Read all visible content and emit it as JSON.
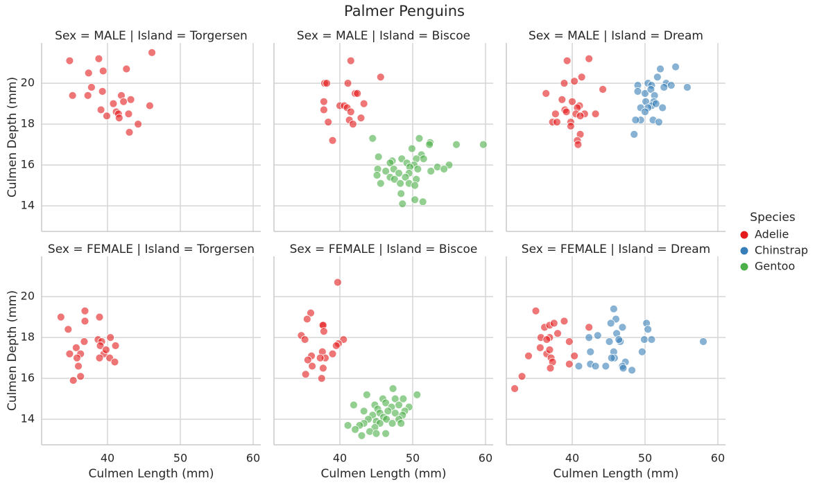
{
  "title": "Palmer Penguins",
  "xlabel": "Culmen Length (mm)",
  "ylabel": "Culmen Depth (mm)",
  "xlim": [
    30.95,
    61.05
  ],
  "ylim": [
    12.75,
    21.97
  ],
  "xticks": [
    40,
    50,
    60
  ],
  "yticks": [
    14,
    16,
    18,
    20
  ],
  "grid": true,
  "legend": {
    "title": "Species",
    "position": "right",
    "entries": [
      {
        "name": "Adelie",
        "color": "#e41a1c"
      },
      {
        "name": "Chinstrap",
        "color": "#377eb8"
      },
      {
        "name": "Gentoo",
        "color": "#4daf4a"
      }
    ]
  },
  "chart_data": [
    {
      "type": "scatter",
      "title": "Sex = MALE | Island = Torgersen",
      "series": [
        {
          "name": "Adelie",
          "color": "#e41a1c",
          "x": [
            34.8,
            38.8,
            46.1,
            42.6,
            37.4,
            39.4,
            37.8,
            35.2,
            37.3,
            39.3,
            40.8,
            41.9,
            43.2,
            42.2,
            39.1,
            39.9,
            41.2,
            41.5,
            41.6,
            42.9,
            45.8,
            44.2,
            43.0
          ],
          "values": [
            21.1,
            21.2,
            21.5,
            20.7,
            20.5,
            20.6,
            19.8,
            19.4,
            19.4,
            19.6,
            19.0,
            19.4,
            19.2,
            19.1,
            18.7,
            18.4,
            18.6,
            18.5,
            18.3,
            18.5,
            18.9,
            18.0,
            17.6
          ]
        }
      ]
    },
    {
      "type": "scatter",
      "title": "Sex = MALE | Island = Biscoe",
      "series": [
        {
          "name": "Adelie",
          "color": "#e41a1c",
          "x": [
            41.5,
            45.6,
            37.9,
            38.2,
            41.1,
            42.1,
            42.4,
            37.8,
            40.0,
            40.6,
            41.0,
            41.5,
            43.3,
            37.8,
            42.9,
            38.4,
            41.3,
            41.8,
            39.0
          ],
          "values": [
            21.1,
            20.3,
            20.0,
            20.0,
            20.0,
            19.5,
            19.5,
            19.1,
            18.9,
            18.9,
            18.8,
            18.6,
            19.0,
            18.7,
            18.3,
            18.1,
            18.2,
            18.0,
            17.2
          ]
        },
        {
          "name": "Gentoo",
          "color": "#4daf4a",
          "x": [
            44.5,
            50.9,
            52.4,
            52.3,
            56.0,
            59.7,
            49.9,
            45.3,
            51.2,
            47.2,
            48.5,
            50.5,
            51.5,
            46.9,
            49.2,
            50.2,
            55.0,
            45.2,
            47.4,
            49.6,
            53.4,
            54.3,
            52.5,
            46.3,
            48.1,
            49.5,
            50.7,
            45.1,
            46.9,
            47.5,
            49.0,
            50.5,
            45.6,
            48.3,
            49.5,
            50.3,
            48.4,
            50.3,
            51.4,
            48.6
          ],
          "values": [
            17.3,
            17.3,
            17.1,
            17.0,
            17.0,
            17.0,
            16.8,
            16.4,
            16.5,
            16.2,
            16.3,
            16.3,
            16.3,
            16.1,
            16.1,
            16.0,
            16.0,
            15.8,
            15.8,
            15.9,
            15.9,
            15.8,
            15.7,
            15.7,
            15.6,
            15.6,
            15.8,
            15.5,
            15.4,
            15.3,
            15.4,
            15.3,
            15.1,
            15.1,
            15.1,
            15.0,
            14.6,
            14.3,
            14.2,
            14.1
          ]
        }
      ]
    },
    {
      "type": "scatter",
      "title": "Sex = MALE | Island = Dream",
      "series": [
        {
          "name": "Adelie",
          "color": "#e41a1c",
          "x": [
            42.3,
            39.3,
            41.3,
            38.9,
            40.3,
            44.2,
            36.4,
            41.0,
            40.7,
            40.0,
            38.6,
            39.0,
            39.2,
            40.5,
            41.7,
            43.2,
            41.1,
            37.7,
            37.3,
            37.9,
            39.8,
            39.8,
            41.1,
            40.7,
            40.8
          ],
          "values": [
            21.2,
            21.1,
            20.3,
            20.0,
            20.1,
            19.7,
            19.5,
            18.9,
            18.8,
            19.1,
            19.2,
            18.7,
            18.6,
            18.5,
            18.5,
            18.5,
            18.4,
            18.5,
            18.1,
            18.1,
            18.1,
            17.9,
            17.5,
            17.2,
            17.0
          ]
        },
        {
          "name": "Chinstrap",
          "color": "#377eb8",
          "x": [
            54.2,
            52.1,
            51.7,
            50.4,
            52.9,
            49.0,
            50.9,
            53.6,
            52.6,
            55.8,
            49.0,
            50.0,
            50.8,
            51.3,
            50.1,
            51.2,
            50.9,
            51.5,
            52.4,
            50.4,
            49.4,
            50.0,
            49.4,
            51.1,
            51.9,
            48.7,
            48.5
          ],
          "values": [
            20.8,
            20.7,
            20.3,
            20.0,
            20.0,
            19.9,
            19.9,
            19.9,
            19.8,
            19.8,
            19.6,
            19.5,
            19.7,
            19.4,
            19.1,
            19.1,
            18.9,
            19.0,
            18.8,
            18.8,
            18.8,
            18.6,
            18.2,
            18.2,
            18.1,
            18.2,
            17.5
          ]
        }
      ]
    },
    {
      "type": "scatter",
      "title": "Sex = FEMALE | Island = Torgersen",
      "series": [
        {
          "name": "Adelie",
          "color": "#e41a1c",
          "x": [
            33.6,
            36.9,
            38.9,
            34.6,
            36.9,
            40.4,
            36.8,
            35.7,
            38.7,
            39.2,
            41.1,
            39.0,
            36.3,
            34.8,
            39.5,
            39.8,
            38.9,
            40.3,
            35.8,
            41.0,
            36.0,
            36.3,
            35.3
          ],
          "values": [
            19.0,
            19.3,
            19.0,
            18.4,
            18.8,
            18.0,
            17.8,
            17.5,
            17.9,
            17.8,
            17.6,
            17.6,
            17.2,
            17.2,
            17.2,
            17.4,
            17.0,
            17.0,
            17.0,
            16.8,
            16.6,
            16.1,
            15.9
          ]
        }
      ]
    },
    {
      "type": "scatter",
      "title": "Sex = FEMALE | Island = Biscoe",
      "series": [
        {
          "name": "Adelie",
          "color": "#e41a1c",
          "x": [
            39.7,
            36.0,
            35.5,
            37.6,
            37.7,
            34.7,
            35.2,
            40.5,
            39.8,
            39.5,
            37.8,
            37.6,
            36.1,
            38.0,
            37.3,
            35.6,
            39.0,
            36.2,
            37.7,
            35.3,
            37.5
          ],
          "values": [
            20.7,
            19.2,
            18.9,
            18.6,
            18.6,
            18.1,
            17.9,
            17.9,
            17.7,
            17.6,
            18.3,
            17.3,
            17.1,
            17.0,
            17.0,
            16.9,
            17.2,
            16.6,
            16.5,
            16.2,
            16.0
          ]
        },
        {
          "name": "Gentoo",
          "color": "#4daf4a",
          "x": [
            47.3,
            50.6,
            43.7,
            45.9,
            47.6,
            48.7,
            41.9,
            44.8,
            46.3,
            47.1,
            48.1,
            49.5,
            45.2,
            43.3,
            46.6,
            48.9,
            45.5,
            47.6,
            44.5,
            46.0,
            48.6,
            43.9,
            46.4,
            48.1,
            43.3,
            45.0,
            45.5,
            47.2,
            41.1,
            42.7,
            44.8,
            48.4,
            42.1,
            44.1,
            46.3,
            45.0,
            43.0
          ],
          "values": [
            15.5,
            15.2,
            15.2,
            15.0,
            15.0,
            15.0,
            14.7,
            14.7,
            14.8,
            14.6,
            14.7,
            14.6,
            14.5,
            14.4,
            14.4,
            14.4,
            14.3,
            14.3,
            14.2,
            14.1,
            14.2,
            14.0,
            14.0,
            14.0,
            13.8,
            13.9,
            13.8,
            13.8,
            13.7,
            13.7,
            13.6,
            13.8,
            13.5,
            13.4,
            13.3,
            13.3,
            13.2
          ]
        }
      ]
    },
    {
      "type": "scatter",
      "title": "Sex = FEMALE | Island = Dream",
      "series": [
        {
          "name": "Adelie",
          "color": "#e41a1c",
          "x": [
            35.0,
            36.2,
            36.9,
            37.5,
            38.9,
            42.3,
            35.7,
            36.9,
            36.5,
            38.0,
            39.6,
            35.6,
            36.5,
            37.1,
            34.0,
            36.9,
            40.3,
            37.3,
            39.6,
            37.0,
            33.1,
            32.1
          ],
          "values": [
            19.3,
            18.5,
            18.6,
            18.7,
            18.8,
            18.5,
            18.0,
            18.0,
            17.9,
            18.2,
            17.8,
            17.5,
            17.2,
            17.0,
            17.1,
            17.4,
            17.1,
            16.8,
            16.7,
            16.5,
            16.1,
            15.5
          ]
        },
        {
          "name": "Chinstrap",
          "color": "#377eb8",
          "x": [
            45.7,
            46.0,
            50.2,
            45.3,
            46.9,
            50.4,
            43.5,
            46.1,
            45.1,
            46.6,
            46.4,
            49.9,
            50.9,
            58.0,
            42.3,
            42.5,
            49.6,
            45.7,
            45.8,
            45.4,
            47.3,
            44.6,
            40.9,
            42.5,
            43.2,
            46.9,
            47.0,
            48.2
          ],
          "values": [
            19.4,
            18.9,
            18.7,
            18.7,
            18.5,
            18.4,
            18.1,
            18.2,
            17.8,
            17.8,
            17.9,
            17.9,
            17.9,
            17.8,
            18.0,
            17.3,
            17.3,
            17.3,
            17.0,
            17.0,
            16.8,
            16.6,
            16.6,
            16.7,
            16.6,
            16.6,
            16.5,
            16.4
          ]
        }
      ]
    }
  ]
}
